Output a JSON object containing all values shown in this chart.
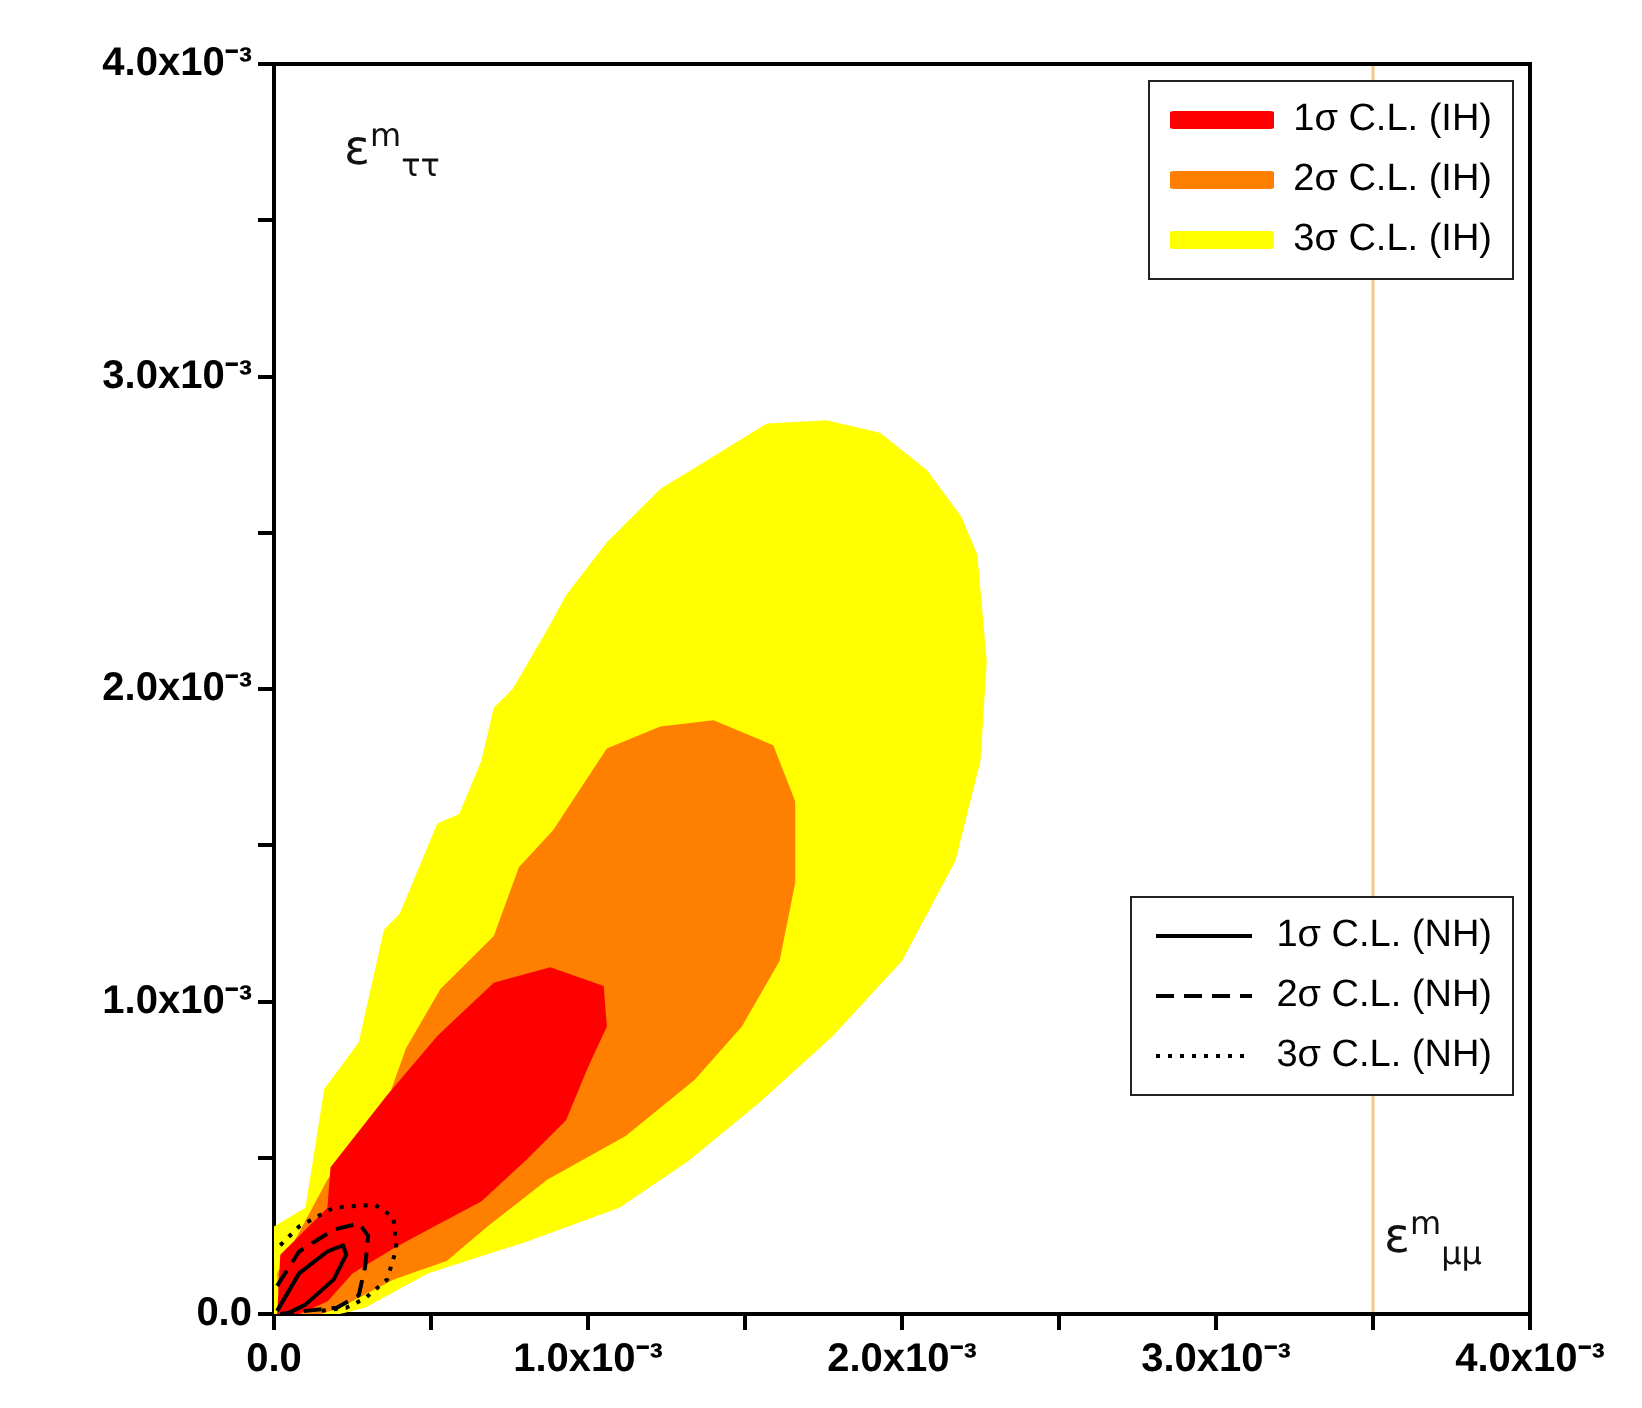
{
  "chart_data": {
    "type": "area",
    "xlabel": "ε$^{m}$$_{μμ}$",
    "ylabel": "ε$^{m}$$_{ττ}$",
    "legend": "top right",
    "xlim": [
      0,
      0.004
    ],
    "ylim": [
      0,
      0.004
    ],
    "xticks": [
      {
        "value": 0,
        "label": "0.0"
      },
      {
        "value": 0.0005,
        "label": null
      },
      {
        "value": 0.001,
        "label": "1.0x10⁻³"
      },
      {
        "value": 0.0015,
        "label": null
      },
      {
        "value": 0.002,
        "label": "2.0x10⁻³"
      },
      {
        "value": 0.0025,
        "label": null
      },
      {
        "value": 0.003,
        "label": "3.0x10⁻³"
      },
      {
        "value": 0.0035,
        "label": null
      },
      {
        "value": 0.004,
        "label": "4.0x10⁻³"
      }
    ],
    "yticks": [
      {
        "value": 0,
        "label": "0.0"
      },
      {
        "value": 0.0005,
        "label": null
      },
      {
        "value": 0.001,
        "label": "1.0x10⁻³"
      },
      {
        "value": 0.0015,
        "label": null
      },
      {
        "value": 0.002,
        "label": "2.0x10⁻³"
      },
      {
        "value": 0.0025,
        "label": null
      },
      {
        "value": 0.003,
        "label": "3.0x10⁻³"
      },
      {
        "value": 0.0035,
        "label": null
      },
      {
        "value": 0.004,
        "label": "4.0x10⁻³"
      }
    ],
    "ref_lines": [
      {
        "axis": "x",
        "value": 0.0035,
        "color": "#f7c784"
      }
    ],
    "series": [
      {
        "name": "1σ C.L. (IH)",
        "color": "#ff0000",
        "x": [
          1e-05,
          2e-05,
          0.00017,
          0.00018,
          0.00036,
          0.00052,
          0.0007,
          0.00088,
          0.00105,
          0.00106,
          0.001,
          0.00093,
          0.0008,
          0.00066,
          0.00051,
          0.00038,
          0.00025,
          0.00017,
          8e-05
        ],
        "values": [
          0,
          0.00019,
          0.00034,
          0.00047,
          0.0007,
          0.00089,
          0.00106,
          0.00111,
          0.00105,
          0.00092,
          0.00079,
          0.00062,
          0.00049,
          0.00036,
          0.00028,
          0.00021,
          0.00013,
          4e-05,
          0
        ]
      },
      {
        "name": "2σ C.L. (IH)",
        "color": "#ff8000",
        "x": [
          2e-05,
          1e-05,
          0.00017,
          0.00036,
          0.00042,
          0.00053,
          0.0007,
          0.00078,
          0.00089,
          0.00106,
          0.00123,
          0.0014,
          0.00159,
          0.00166,
          0.00166,
          0.00161,
          0.00149,
          0.00134,
          0.00112,
          0.00087,
          0.00068,
          0.00055,
          0.00038,
          0.00021,
          0.00015
        ],
        "values": [
          0,
          0.00013,
          0.00043,
          0.00068,
          0.00085,
          0.00104,
          0.00121,
          0.00143,
          0.00155,
          0.00181,
          0.00188,
          0.0019,
          0.00182,
          0.00164,
          0.00138,
          0.00113,
          0.00092,
          0.00075,
          0.00057,
          0.00043,
          0.00028,
          0.00017,
          0.00011,
          2e-05,
          0
        ]
      },
      {
        "name": "3σ C.L. (IH)",
        "color": "#ffff00",
        "x": [
          0,
          0,
          0.0001,
          0.00016,
          0.00027,
          0.00035,
          0.0004,
          0.00052,
          0.00059,
          0.00066,
          0.0007,
          0.00076,
          0.00087,
          0.00093,
          0.00106,
          0.00123,
          0.00136,
          0.00157,
          0.00176,
          0.00193,
          0.00208,
          0.00219,
          0.00224,
          0.00227,
          0.00225,
          0.00217,
          0.002,
          0.00178,
          0.00155,
          0.00132,
          0.0011,
          0.0008,
          0.00049,
          0.00029,
          0.00021
        ],
        "values": [
          0,
          0.00028,
          0.00034,
          0.00072,
          0.00087,
          0.00123,
          0.00128,
          0.00157,
          0.0016,
          0.00177,
          0.00194,
          0.002,
          0.00219,
          0.0023,
          0.00247,
          0.00264,
          0.00272,
          0.00285,
          0.00286,
          0.00282,
          0.0027,
          0.00255,
          0.00243,
          0.00209,
          0.00177,
          0.00145,
          0.00113,
          0.00089,
          0.00068,
          0.00049,
          0.00034,
          0.00023,
          0.00013,
          2e-05,
          0
        ]
      },
      {
        "name": "1σ C.L. (NH)",
        "type": "line",
        "color": "#000000",
        "line_style": "solid",
        "x": [
          1e-05,
          8e-05,
          0.00017,
          0.00022,
          0.00023,
          0.00019,
          0.0001,
          4e-05
        ],
        "values": [
          1e-05,
          0.00013,
          0.0002,
          0.00022,
          0.00019,
          0.00011,
          3e-05,
          0
        ]
      },
      {
        "name": "2σ C.L. (NH)",
        "type": "line",
        "color": "#000000",
        "line_style": "dashed",
        "x": [
          1e-05,
          8e-05,
          0.00019,
          0.00027,
          0.0003,
          0.00029,
          0.00027,
          0.0002,
          0.0001,
          2e-05
        ],
        "values": [
          9e-05,
          0.0002,
          0.00027,
          0.00029,
          0.00025,
          0.00015,
          6e-05,
          2e-05,
          1e-05,
          0
        ]
      },
      {
        "name": "3σ C.L. (NH)",
        "type": "line",
        "color": "#000000",
        "line_style": "dotted",
        "x": [
          2e-05,
          8e-05,
          0.00019,
          0.00032,
          0.00038,
          0.00039,
          0.00036,
          0.00029,
          0.00023,
          0.00015
        ],
        "values": [
          0.00022,
          0.00028,
          0.00034,
          0.00035,
          0.00031,
          0.00021,
          0.00011,
          5e-05,
          2e-05,
          1e-05
        ]
      }
    ]
  }
}
